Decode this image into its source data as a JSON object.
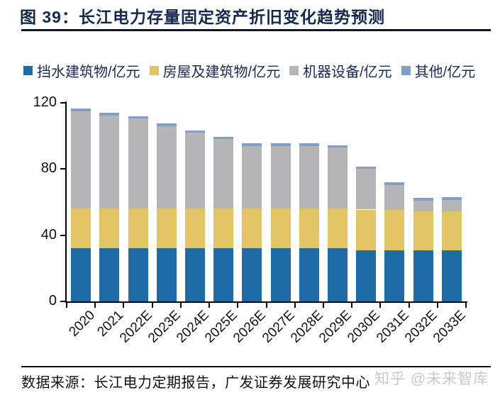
{
  "page": {
    "title": "图 39：长江电力存量固定资产折旧变化趋势预测",
    "source": "数据来源：长江电力定期报告，广发证券发展研究中心",
    "watermark": "知乎 @未来智库"
  },
  "chart_data": {
    "type": "bar",
    "stacked": true,
    "title": "长江电力存量固定资产折旧变化趋势预测",
    "unit": "亿元",
    "categories": [
      "2020",
      "2021",
      "2022E",
      "2023E",
      "2024E",
      "2025E",
      "2026E",
      "2027E",
      "2028E",
      "2029E",
      "2030E",
      "2031E",
      "2032E",
      "2033E"
    ],
    "series": [
      {
        "name": "挡水建筑物/亿元",
        "color": "#1E6BA8",
        "values": [
          32,
          32,
          32,
          32,
          32,
          32,
          32,
          32,
          32,
          32,
          31,
          31,
          31,
          31
        ]
      },
      {
        "name": "房屋及建筑物/亿元",
        "color": "#E3C465",
        "values": [
          24,
          24,
          24,
          24,
          24,
          24,
          24,
          24,
          24,
          24,
          24.5,
          24.5,
          23.5,
          23.5
        ]
      },
      {
        "name": "机器设备/亿元",
        "color": "#B5B5B8",
        "values": [
          59,
          56.5,
          54.5,
          50,
          46,
          42,
          38,
          38,
          38,
          37,
          24.5,
          15,
          6.5,
          7
        ]
      },
      {
        "name": "其他/亿元",
        "color": "#7E9FC8",
        "values": [
          1.5,
          1.5,
          1.5,
          1.5,
          1.5,
          1.5,
          1.5,
          1.5,
          1.5,
          1.5,
          1.5,
          1.5,
          1.5,
          1.5
        ]
      }
    ],
    "totals": [
      116.5,
      114,
      112,
      107.5,
      103.5,
      99.5,
      95.5,
      95.5,
      95.5,
      94.5,
      81.5,
      72,
      62.5,
      63
    ],
    "ylim": [
      0,
      120
    ],
    "yticks": [
      0,
      40,
      80,
      120
    ],
    "legend_position": "top",
    "grid": false
  },
  "colors": {
    "title_text": "#15294E",
    "legend_text": "#1B2B50",
    "axis": "#000000",
    "rule": "#101828",
    "watermark": "#C5C5C7"
  }
}
